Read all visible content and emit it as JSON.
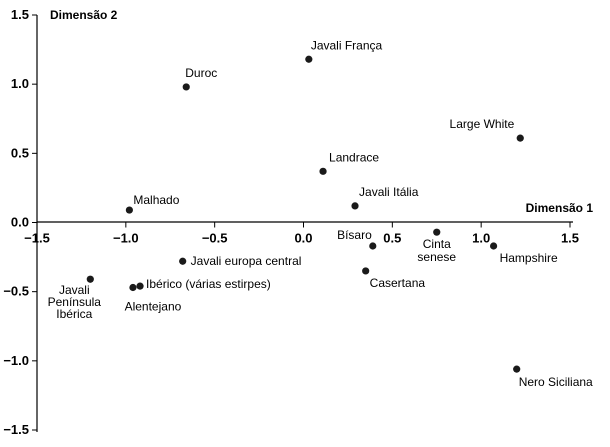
{
  "chart_data": {
    "type": "scatter",
    "xlabel": "Dimensão 1",
    "ylabel": "Dimensão 2",
    "xlim": [
      -1.5,
      1.5
    ],
    "ylim": [
      -1.5,
      1.5
    ],
    "x_ticks": [
      "−1.5",
      "−1.0",
      "−0.5",
      "0.0",
      "0.5",
      "1.0",
      "1.5"
    ],
    "y_ticks": [
      "1.5",
      "1.0",
      "0.5",
      "0.0",
      "−0.5",
      "−1.0",
      "−1.5"
    ],
    "grid": false,
    "marker_color": "#1a1a1a",
    "points": [
      {
        "label": "Javali França",
        "x": 0.03,
        "y": 1.18
      },
      {
        "label": "Duroc",
        "x": -0.66,
        "y": 0.98
      },
      {
        "label": "Large White",
        "x": 1.22,
        "y": 0.61
      },
      {
        "label": "Landrace",
        "x": 0.11,
        "y": 0.37
      },
      {
        "label": "Javali Itália",
        "x": 0.29,
        "y": 0.12
      },
      {
        "label": "Malhado",
        "x": -0.98,
        "y": 0.09
      },
      {
        "label": "Bísaro",
        "x": 0.39,
        "y": -0.17
      },
      {
        "label": "Cinta senese",
        "x": 0.75,
        "y": -0.07
      },
      {
        "label": "Hampshire",
        "x": 1.07,
        "y": -0.17
      },
      {
        "label": "Javali europa central",
        "x": -0.68,
        "y": -0.28
      },
      {
        "label": "Casertana",
        "x": 0.35,
        "y": -0.35
      },
      {
        "label": "Javali Península Ibérica",
        "x": -1.2,
        "y": -0.41
      },
      {
        "label": "Ibérico (várias estirpes)",
        "x": -0.92,
        "y": -0.46
      },
      {
        "label": "Alentejano",
        "x": -0.96,
        "y": -0.47
      },
      {
        "label": "Nero Siciliana",
        "x": 1.2,
        "y": -1.06
      }
    ]
  }
}
